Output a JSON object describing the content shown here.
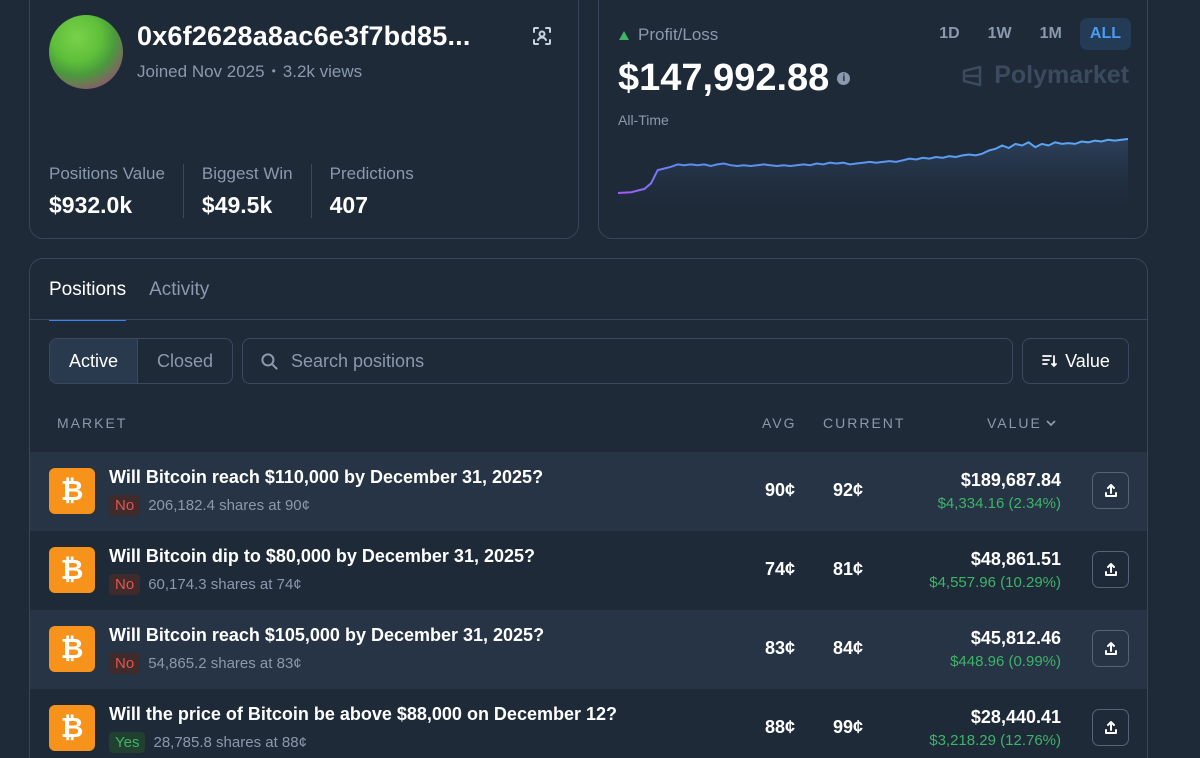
{
  "profile": {
    "address": "0x6f2628a8ac6e3f7bd85...",
    "joined": "Joined Nov 2025",
    "separator": "•",
    "views": "3.2k views",
    "stats": [
      {
        "label": "Positions Value",
        "value": "$932.0k"
      },
      {
        "label": "Biggest Win",
        "value": "$49.5k"
      },
      {
        "label": "Predictions",
        "value": "407"
      }
    ]
  },
  "pnl": {
    "label": "Profit/Loss",
    "value": "$147,992.88",
    "info_glyph": "i",
    "period": "All-Time",
    "ranges": [
      "1D",
      "1W",
      "1M",
      "ALL"
    ],
    "active_range": "ALL",
    "brand": "Polymarket",
    "chart_data": {
      "type": "area",
      "values": [
        0,
        0.5,
        1,
        3,
        5,
        12,
        28,
        30,
        32,
        35,
        34,
        35,
        34,
        35,
        33,
        35,
        36,
        34,
        33,
        34,
        33,
        34,
        35,
        34,
        33,
        34,
        33,
        34,
        35,
        34,
        36,
        35,
        37,
        36,
        37,
        35,
        36,
        37,
        38,
        37,
        38,
        39,
        38,
        40,
        42,
        41,
        43,
        42,
        44,
        43,
        45,
        44,
        46,
        47,
        46,
        48,
        52,
        54,
        58,
        55,
        60,
        58,
        62,
        56,
        60,
        58,
        62,
        60,
        61,
        60,
        63,
        62,
        64,
        63,
        65,
        64,
        65,
        66
      ]
    }
  },
  "positions": {
    "tabs": [
      "Positions",
      "Activity"
    ],
    "filters": [
      "Active",
      "Closed"
    ],
    "search_placeholder": "Search positions",
    "sort_label": "Value",
    "headers": {
      "market": "MARKET",
      "avg": "AVG",
      "current": "CURRENT",
      "value": "VALUE"
    },
    "coin_glyph": "₿",
    "rows": [
      {
        "title": "Will Bitcoin reach $110,000 by December 31, 2025?",
        "side": "No",
        "shares": "206,182.4 shares at 90¢",
        "avg": "90¢",
        "current": "92¢",
        "value": "$189,687.84",
        "change": "$4,334.16 (2.34%)"
      },
      {
        "title": "Will Bitcoin dip to $80,000 by December 31, 2025?",
        "side": "No",
        "shares": "60,174.3 shares at 74¢",
        "avg": "74¢",
        "current": "81¢",
        "value": "$48,861.51",
        "change": "$4,557.96 (10.29%)"
      },
      {
        "title": "Will Bitcoin reach $105,000 by December 31, 2025?",
        "side": "No",
        "shares": "54,865.2 shares at 83¢",
        "avg": "83¢",
        "current": "84¢",
        "value": "$45,812.46",
        "change": "$448.96 (0.99%)"
      },
      {
        "title": "Will the price of Bitcoin be above $88,000 on December 12?",
        "side": "Yes",
        "shares": "28,785.8 shares at 88¢",
        "avg": "88¢",
        "current": "99¢",
        "value": "$28,440.41",
        "change": "$3,218.29 (12.76%)"
      }
    ]
  },
  "colors": {
    "accent": "#3b82f6",
    "positive": "#3db468",
    "negative": "#e2564b",
    "bitcoin": "#f7931a"
  }
}
